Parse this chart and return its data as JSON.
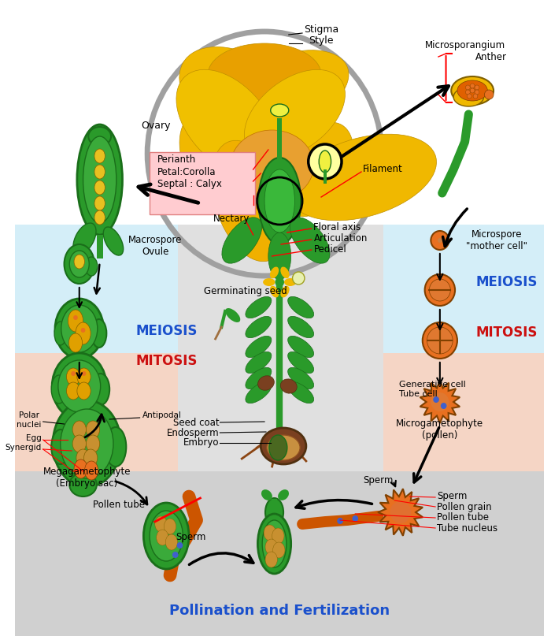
{
  "bg_color": "#ffffff",
  "light_blue": "#d4eef8",
  "light_pink": "#f5d5c5",
  "light_gray": "#d0d0d0",
  "dark_green": "#1a6e1a",
  "medium_green": "#2a9a2a",
  "bright_green": "#3ab83a",
  "golden": "#e8c020",
  "orange": "#e87020",
  "dark_orange": "#cc5500",
  "brown": "#7a4020",
  "yellow_flower": "#f0b800",
  "orange_anther": "#e06000",
  "blue_text": "#1a50cc",
  "red_text": "#cc1010",
  "pink_bg": "#ffccd0",
  "title_bottom": "Pollination and Fertilization",
  "labels": {
    "stigma": "Stigma",
    "style": "Style",
    "microsporangium": "Microsporangium",
    "anther": "Anther",
    "perianth": "Perianth\nPetal:Corolla\nSeptal : Calyx",
    "filament": "Filament",
    "floral_axis": "Floral axis",
    "articulation": "Articulation",
    "pedicel": "Pedicel",
    "nectary": "Nectary",
    "ovary": "Ovary",
    "macrospore": "Macrospore\nOvule",
    "meiosis_left": "MEIOSIS",
    "mitosis_left": "MITOSIS",
    "polar_nuclei": "Polar\nnuclei",
    "antipodal": "Antipodal",
    "egg": "Egg",
    "synergid": "Synergid",
    "megagametophyte": "Megagametophyte\n(Embryo sac)",
    "microspore": "Microspore\n\"mother cell\"",
    "meiosis_right": "MEIOSIS",
    "mitosis_right": "MITOSIS",
    "generative_cell": "Generative cell",
    "tube_cell": "Tube cell",
    "microgametophyte": "Microgametophyte\n(pollen)",
    "germinating": "Germinating seed",
    "seed_coat": "Seed coat",
    "endosperm": "Endosperm",
    "embryo": "Embryo",
    "pollen_tube_left": "Pollen tube",
    "sperm_left": "Sperm",
    "sperm_top": "Sperm",
    "pollen_grain": "Pollen grain",
    "pollen_tube_right": "Pollen tube",
    "tube_nucleus": "Tube nucleus"
  }
}
